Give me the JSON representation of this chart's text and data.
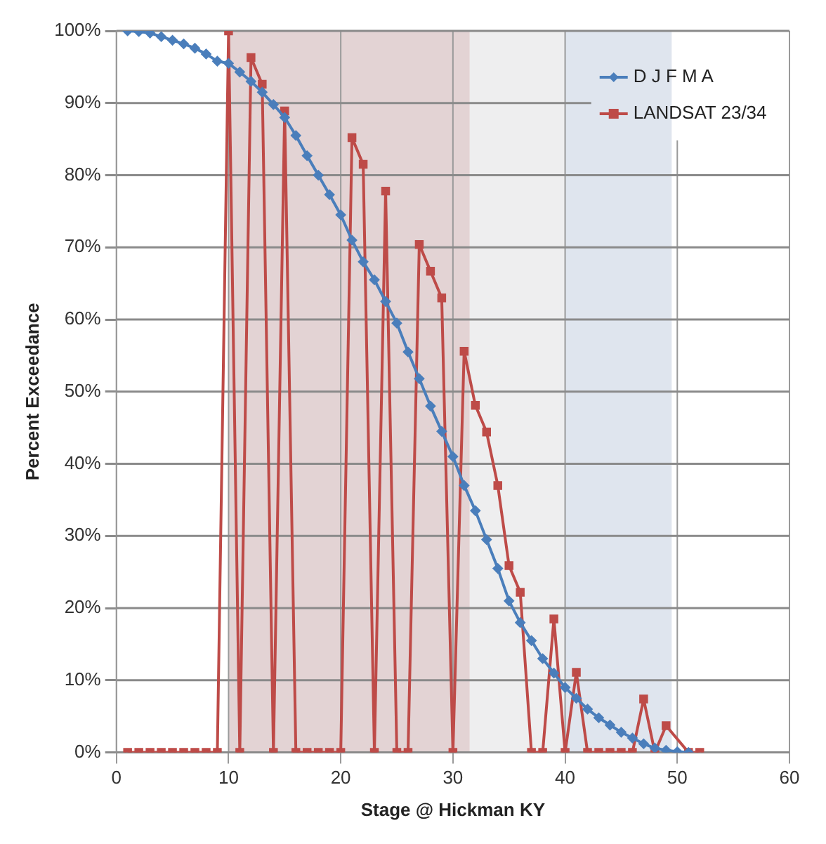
{
  "chart_data": {
    "type": "line",
    "xlabel": "Stage @ Hickman KY",
    "ylabel": "Percent Exceedance",
    "xlim": [
      0,
      60
    ],
    "xticks": [
      0,
      10,
      20,
      30,
      40,
      50,
      60
    ],
    "ylim": [
      0,
      100
    ],
    "yticks": [
      {
        "value": 0,
        "label": "0%"
      },
      {
        "value": 10,
        "label": "10%"
      },
      {
        "value": 20,
        "label": "20%"
      },
      {
        "value": 30,
        "label": "30%"
      },
      {
        "value": 40,
        "label": "40%"
      },
      {
        "value": 50,
        "label": "50%"
      },
      {
        "value": 60,
        "label": "60%"
      },
      {
        "value": 70,
        "label": "70%"
      },
      {
        "value": 80,
        "label": "80%"
      },
      {
        "value": 90,
        "label": "90%"
      },
      {
        "value": 100,
        "label": "100%"
      }
    ],
    "grid": true,
    "legend": "top right",
    "line_style": "solid",
    "bands": [
      {
        "axis": "x",
        "from": 10,
        "to": 31.5,
        "color": "#e3d3d4"
      },
      {
        "axis": "x",
        "from": 31.5,
        "to": 40,
        "color": "#eeeeef"
      },
      {
        "axis": "x",
        "from": 40,
        "to": 49.5,
        "color": "#dfe5ee"
      }
    ],
    "series": [
      {
        "name": "D J F M A",
        "color": "#4a7ebb",
        "marker": "diamond",
        "x": [
          1,
          2,
          3,
          4,
          5,
          6,
          7,
          8,
          9,
          10,
          11,
          12,
          13,
          14,
          15,
          16,
          17,
          18,
          19,
          20,
          21,
          22,
          23,
          24,
          25,
          26,
          27,
          28,
          29,
          30,
          31,
          32,
          33,
          34,
          35,
          36,
          37,
          38,
          39,
          40,
          41,
          42,
          43,
          44,
          45,
          46,
          47,
          48,
          49,
          50,
          51
        ],
        "values": [
          100,
          99.9,
          99.7,
          99.2,
          98.7,
          98.2,
          97.6,
          96.8,
          95.8,
          95.5,
          94.3,
          93,
          91.5,
          89.8,
          88,
          85.5,
          82.7,
          80,
          77.3,
          74.5,
          71,
          68,
          65.5,
          62.5,
          59.5,
          55.5,
          51.8,
          48,
          44.5,
          41,
          37,
          33.5,
          29.5,
          25.5,
          21,
          18,
          15.5,
          13,
          11,
          9,
          7.5,
          6,
          4.8,
          3.8,
          2.8,
          2,
          1.2,
          0.6,
          0.3,
          0.1,
          0
        ]
      },
      {
        "name": "LANDSAT 23/34",
        "color": "#be4b48",
        "marker": "square",
        "x": [
          1,
          2,
          3,
          4,
          5,
          6,
          7,
          8,
          9,
          10,
          11,
          12,
          13,
          14,
          15,
          16,
          17,
          18,
          19,
          20,
          21,
          22,
          23,
          24,
          25,
          26,
          27,
          28,
          29,
          30,
          31,
          32,
          33,
          34,
          35,
          36,
          37,
          38,
          39,
          40,
          41,
          42,
          43,
          44,
          45,
          46,
          47,
          48,
          49,
          51,
          52
        ],
        "values": [
          0,
          0,
          0,
          0,
          0,
          0,
          0,
          0,
          0,
          100,
          0,
          96.3,
          92.6,
          0,
          88.9,
          0,
          0,
          0,
          0,
          0,
          85.2,
          81.5,
          0,
          77.8,
          0,
          0,
          70.4,
          66.7,
          63,
          0,
          55.6,
          48.1,
          44.4,
          37,
          25.9,
          22.2,
          0,
          0,
          18.5,
          0,
          11.1,
          0,
          0,
          0,
          0,
          0,
          7.4,
          0,
          3.7,
          0,
          0
        ]
      }
    ]
  }
}
